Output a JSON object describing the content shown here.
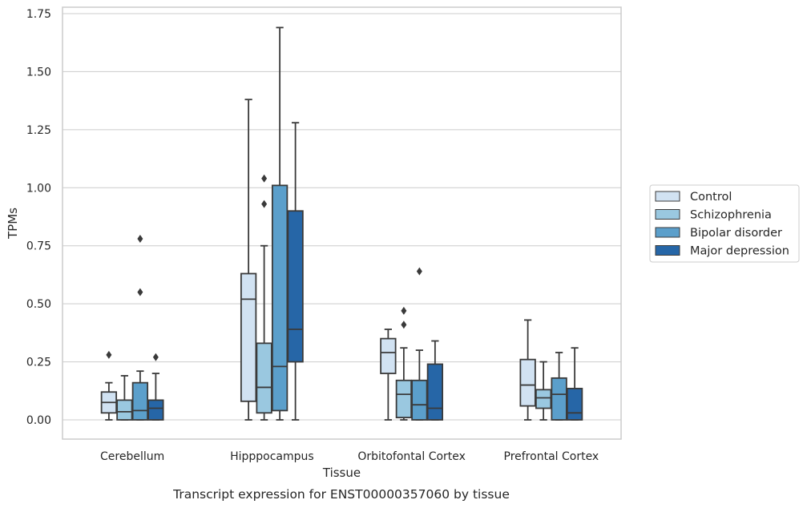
{
  "chart_data": {
    "type": "boxplot",
    "xlabel": "Tissue",
    "ylabel": "TPMs",
    "caption": "Transcript expression for ENST00000357060 by tissue",
    "ylim": [
      -0.08,
      1.77
    ],
    "yticks": [
      "0.00",
      "0.25",
      "0.50",
      "0.75",
      "1.00",
      "1.25",
      "1.50",
      "1.75"
    ],
    "ytick_values": [
      0,
      0.25,
      0.5,
      0.75,
      1.0,
      1.25,
      1.5,
      1.75
    ],
    "grid": "horizontal",
    "legend_position": "right",
    "categories": [
      "Cerebellum",
      "Hipppocampus",
      "Orbitofontal Cortex",
      "Prefrontal Cortex"
    ],
    "series": [
      {
        "name": "Control",
        "color": "#d1e2f2",
        "boxes": [
          {
            "whislo": 0.0,
            "q1": 0.03,
            "med": 0.075,
            "q3": 0.12,
            "whishi": 0.16,
            "fliers": [
              0.28
            ]
          },
          {
            "whislo": 0.0,
            "q1": 0.08,
            "med": 0.52,
            "q3": 0.63,
            "whishi": 1.38,
            "fliers": []
          },
          {
            "whislo": 0.0,
            "q1": 0.2,
            "med": 0.29,
            "q3": 0.35,
            "whishi": 0.39,
            "fliers": []
          },
          {
            "whislo": 0.0,
            "q1": 0.06,
            "med": 0.15,
            "q3": 0.26,
            "whishi": 0.43,
            "fliers": []
          }
        ]
      },
      {
        "name": "Schizophrenia",
        "color": "#9ac8e0",
        "boxes": [
          {
            "whislo": 0.0,
            "q1": 0.0,
            "med": 0.035,
            "q3": 0.085,
            "whishi": 0.19,
            "fliers": []
          },
          {
            "whislo": 0.0,
            "q1": 0.03,
            "med": 0.14,
            "q3": 0.33,
            "whishi": 0.75,
            "fliers": [
              0.93,
              1.04
            ]
          },
          {
            "whislo": 0.0,
            "q1": 0.01,
            "med": 0.11,
            "q3": 0.17,
            "whishi": 0.31,
            "fliers": [
              0.41,
              0.47
            ]
          },
          {
            "whislo": 0.0,
            "q1": 0.05,
            "med": 0.095,
            "q3": 0.13,
            "whishi": 0.25,
            "fliers": []
          }
        ]
      },
      {
        "name": "Bipolar disorder",
        "color": "#5b9fcb",
        "boxes": [
          {
            "whislo": 0.0,
            "q1": 0.0,
            "med": 0.04,
            "q3": 0.16,
            "whishi": 0.21,
            "fliers": [
              0.55,
              0.78
            ]
          },
          {
            "whislo": 0.0,
            "q1": 0.04,
            "med": 0.23,
            "q3": 1.01,
            "whishi": 1.69,
            "fliers": []
          },
          {
            "whislo": 0.0,
            "q1": 0.0,
            "med": 0.065,
            "q3": 0.17,
            "whishi": 0.3,
            "fliers": [
              0.64
            ]
          },
          {
            "whislo": 0.0,
            "q1": 0.0,
            "med": 0.11,
            "q3": 0.18,
            "whishi": 0.29,
            "fliers": []
          }
        ]
      },
      {
        "name": "Major depression",
        "color": "#2666a7",
        "boxes": [
          {
            "whislo": 0.0,
            "q1": 0.0,
            "med": 0.05,
            "q3": 0.085,
            "whishi": 0.2,
            "fliers": [
              0.27
            ]
          },
          {
            "whislo": 0.0,
            "q1": 0.25,
            "med": 0.39,
            "q3": 0.9,
            "whishi": 1.28,
            "fliers": []
          },
          {
            "whislo": 0.0,
            "q1": 0.0,
            "med": 0.05,
            "q3": 0.24,
            "whishi": 0.34,
            "fliers": []
          },
          {
            "whislo": 0.0,
            "q1": 0.0,
            "med": 0.03,
            "q3": 0.135,
            "whishi": 0.31,
            "fliers": []
          }
        ]
      }
    ]
  },
  "colors": {
    "frame": "#cccccc",
    "grid": "#cccccc",
    "box_edge": "#3a3a3a",
    "text": "#262626"
  }
}
